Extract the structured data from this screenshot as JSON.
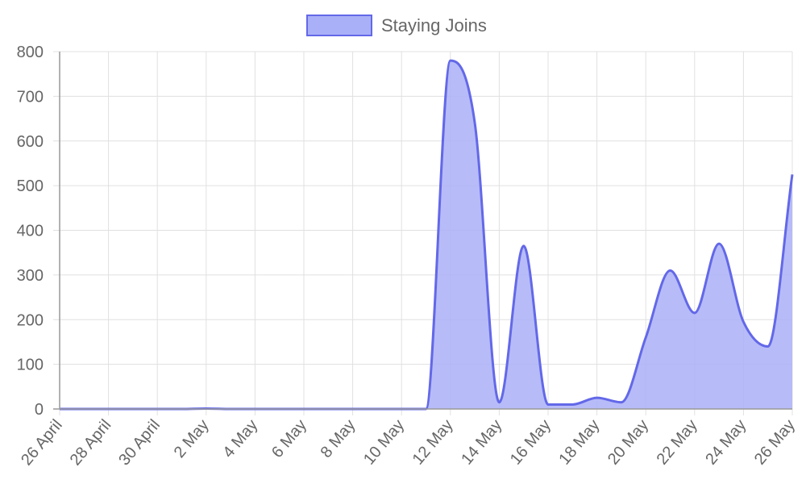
{
  "chart_data": {
    "type": "area",
    "x": [
      "26 April",
      "27 April",
      "28 April",
      "29 April",
      "30 April",
      "1 May",
      "2 May",
      "3 May",
      "4 May",
      "5 May",
      "6 May",
      "7 May",
      "8 May",
      "9 May",
      "10 May",
      "11 May",
      "12 May",
      "13 May",
      "14 May",
      "15 May",
      "16 May",
      "17 May",
      "18 May",
      "19 May",
      "20 May",
      "21 May",
      "22 May",
      "23 May",
      "24 May",
      "25 May",
      "26 May"
    ],
    "x_tick_labels": [
      "26 April",
      "28 April",
      "30 April",
      "2 May",
      "4 May",
      "6 May",
      "8 May",
      "10 May",
      "12 May",
      "14 May",
      "16 May",
      "18 May",
      "20 May",
      "22 May",
      "24 May",
      "26 May"
    ],
    "series": [
      {
        "name": "Staying Joins",
        "values": [
          0,
          0,
          0,
          0,
          0,
          0,
          1,
          0,
          0,
          0,
          0,
          0,
          0,
          0,
          0,
          0,
          780,
          640,
          15,
          365,
          10,
          10,
          25,
          15,
          160,
          310,
          215,
          370,
          195,
          140,
          525
        ],
        "color": "#6368e8",
        "fill": "#aab0f7"
      }
    ],
    "ylim": [
      0,
      800
    ],
    "y_ticks": [
      0,
      100,
      200,
      300,
      400,
      500,
      600,
      700,
      800
    ],
    "grid": true,
    "legend": "top-center",
    "title": "",
    "xlabel": "",
    "ylabel": ""
  }
}
